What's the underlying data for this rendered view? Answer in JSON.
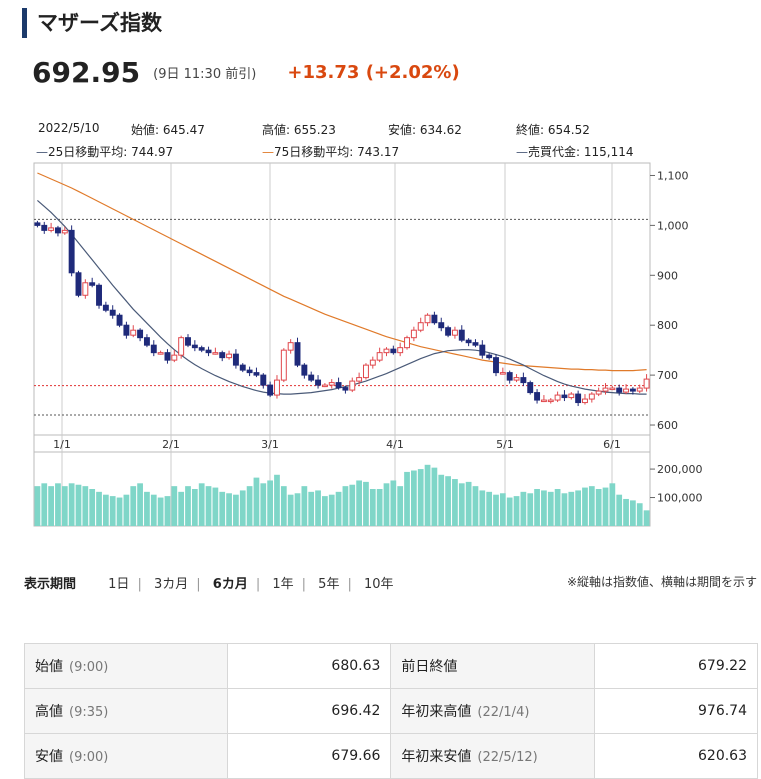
{
  "title": "マザーズ指数",
  "price": "692.95",
  "as_of": "(9日 11:30 前引)",
  "change": "+13.73 (+2.02%)",
  "colors": {
    "accent": "#1c3a6b",
    "up": "#e0474c",
    "down": "#1f2a7a",
    "ma25": "#4a5a78",
    "ma75": "#e07a2a",
    "volume": "#7fd6c8",
    "change": "#d9480f"
  },
  "info": {
    "date": "2022/5/10",
    "open": "始値: 645.47",
    "high": "高値: 655.23",
    "low": "安値: 634.62",
    "close": "終値: 654.52",
    "ma25": "25日移動平均: 744.97",
    "ma75": "75日移動平均: 743.17",
    "volume": "売買代金: 115,114"
  },
  "period": {
    "label": "表示期間",
    "options": [
      "1日",
      "3カ月",
      "6カ月",
      "1年",
      "5年",
      "10年"
    ],
    "active": "6カ月"
  },
  "note": "※縦軸は指数値、横軸は期間を示す",
  "stats": [
    {
      "k1": "始値",
      "t1": "(9:00)",
      "v1": "680.63",
      "k2": "前日終値",
      "t2": "",
      "v2": "679.22"
    },
    {
      "k1": "高値",
      "t1": "(9:35)",
      "v1": "696.42",
      "k2": "年初来高値",
      "t2": "(22/1/4)",
      "v2": "976.74"
    },
    {
      "k1": "安値",
      "t1": "(9:00)",
      "v1": "679.66",
      "k2": "年初来安値",
      "t2": "(22/5/12)",
      "v2": "620.63"
    }
  ],
  "chart_data": {
    "type": "candlestick",
    "x_ticks": [
      "1/1",
      "2/1",
      "3/1",
      "4/1",
      "5/1",
      "6/1"
    ],
    "y_ticks": [
      600,
      700,
      800,
      900,
      1000,
      1100
    ],
    "y_tick_labels": [
      "600",
      "700",
      "800",
      "900",
      "1,000",
      "1,100"
    ],
    "ylim": [
      580,
      1125
    ],
    "reference_lines": [
      1012,
      679,
      620
    ],
    "volume_ticks": [
      100000,
      200000
    ],
    "volume_tick_labels": [
      "100,000",
      "200,000"
    ],
    "volume_max": 260000,
    "closes": [
      1000,
      990,
      995,
      985,
      990,
      905,
      860,
      885,
      880,
      840,
      830,
      820,
      800,
      780,
      790,
      775,
      760,
      745,
      745,
      730,
      740,
      775,
      760,
      755,
      750,
      745,
      745,
      735,
      742,
      720,
      710,
      705,
      700,
      680,
      660,
      690,
      750,
      765,
      720,
      700,
      690,
      680,
      680,
      685,
      675,
      670,
      688,
      695,
      720,
      730,
      745,
      752,
      745,
      755,
      775,
      790,
      805,
      820,
      805,
      795,
      780,
      790,
      770,
      765,
      760,
      740,
      735,
      705,
      705,
      690,
      695,
      685,
      665,
      650,
      650,
      650,
      660,
      655,
      662,
      645,
      652,
      662,
      668,
      674,
      674,
      666,
      672,
      668,
      674,
      692
    ],
    "ma25": [
      1050,
      1038,
      1026,
      1012,
      998,
      982,
      965,
      948,
      931,
      914,
      897,
      880,
      864,
      848,
      832,
      818,
      804,
      790,
      776,
      763,
      751,
      740,
      730,
      721,
      713,
      706,
      699,
      693,
      687,
      682,
      677,
      673,
      669,
      666,
      664,
      663,
      662,
      662,
      663,
      664,
      665,
      667,
      669,
      671,
      674,
      677,
      680,
      684,
      688,
      693,
      698,
      703,
      709,
      715,
      721,
      727,
      733,
      738,
      743,
      746,
      749,
      750,
      751,
      751,
      750,
      748,
      745,
      741,
      737,
      732,
      726,
      720,
      713,
      706,
      699,
      693,
      687,
      682,
      678,
      675,
      672,
      670,
      668,
      666,
      665,
      664,
      663,
      663,
      662,
      662
    ],
    "ma75": [
      1105,
      1099,
      1093,
      1087,
      1081,
      1075,
      1068,
      1061,
      1054,
      1047,
      1040,
      1033,
      1026,
      1019,
      1012,
      1005,
      998,
      991,
      984,
      977,
      970,
      963,
      956,
      949,
      942,
      935,
      928,
      921,
      914,
      907,
      900,
      893,
      886,
      879,
      872,
      865,
      858,
      852,
      846,
      840,
      834,
      828,
      822,
      817,
      812,
      807,
      802,
      797,
      792,
      787,
      782,
      777,
      773,
      769,
      765,
      761,
      757,
      754,
      751,
      748,
      745,
      742,
      739,
      736,
      733,
      730,
      728,
      726,
      724,
      722,
      720,
      719,
      718,
      717,
      716,
      715,
      714,
      713,
      712,
      712,
      711,
      711,
      710,
      710,
      709,
      709,
      709,
      709,
      710,
      711
    ],
    "volume": [
      140000,
      150000,
      140000,
      150000,
      140000,
      150000,
      145000,
      140000,
      130000,
      120000,
      110000,
      105000,
      100000,
      110000,
      140000,
      150000,
      120000,
      110000,
      100000,
      105000,
      140000,
      120000,
      140000,
      130000,
      150000,
      140000,
      135000,
      120000,
      115000,
      110000,
      125000,
      140000,
      170000,
      150000,
      160000,
      180000,
      140000,
      110000,
      115000,
      140000,
      120000,
      125000,
      105000,
      110000,
      120000,
      140000,
      145000,
      160000,
      155000,
      130000,
      130000,
      150000,
      160000,
      140000,
      190000,
      195000,
      200000,
      215000,
      205000,
      180000,
      175000,
      165000,
      150000,
      155000,
      140000,
      125000,
      120000,
      110000,
      115000,
      100000,
      105000,
      120000,
      115000,
      130000,
      125000,
      120000,
      130000,
      115000,
      120000,
      125000,
      135000,
      140000,
      130000,
      135000,
      150000,
      110000,
      95000,
      90000,
      80000,
      55000
    ]
  }
}
